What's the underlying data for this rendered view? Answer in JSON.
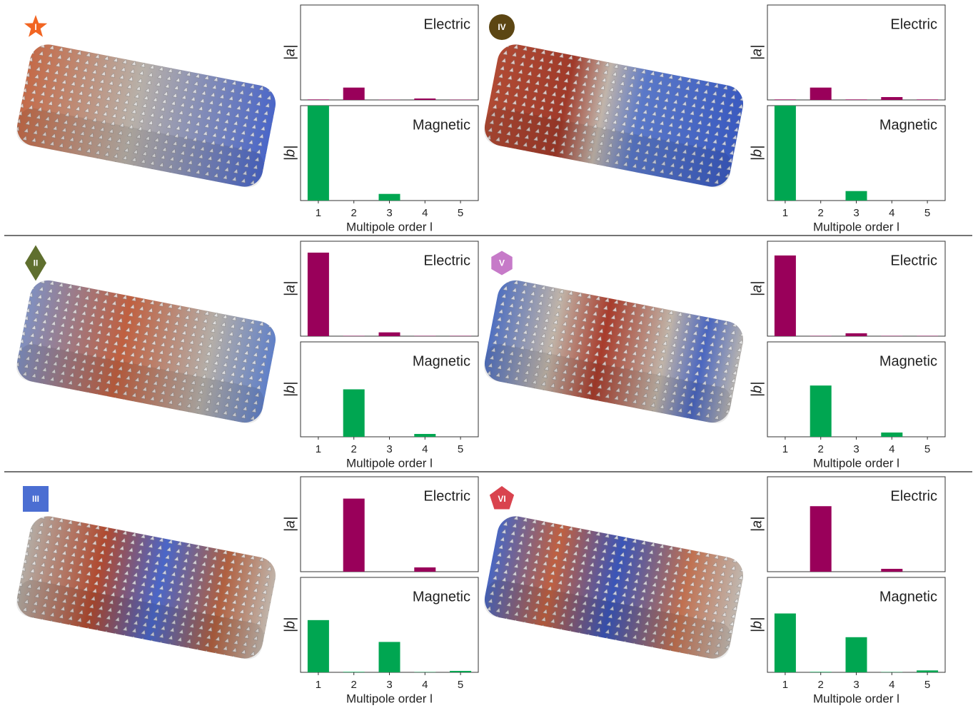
{
  "panels": [
    {
      "label": "I"
    },
    {
      "label": "IV"
    },
    {
      "label": "II"
    },
    {
      "label": "V"
    },
    {
      "label": "III"
    },
    {
      "label": "VI"
    }
  ],
  "chart_data": [
    {
      "type": "bar",
      "title": "Electric",
      "ylabel": "|a|",
      "values": [
        0.005,
        0.13,
        0.003,
        0.015,
        0.003
      ],
      "color": "#99005a",
      "ylim": [
        0,
        1
      ]
    },
    {
      "type": "bar",
      "title": "Magnetic",
      "ylabel": "|b|",
      "categories": [
        1,
        2,
        3,
        4,
        5
      ],
      "xlabel": "Multipole order l",
      "values": [
        1.0,
        0.0,
        0.07,
        0.0,
        0.0
      ],
      "color": "#00a651",
      "ylim": [
        0,
        1
      ]
    },
    {
      "type": "bar",
      "title": "Electric",
      "ylabel": "|a|",
      "values": [
        0.005,
        0.13,
        0.005,
        0.03,
        0.005
      ],
      "color": "#99005a",
      "ylim": [
        0,
        1
      ]
    },
    {
      "type": "bar",
      "title": "Magnetic",
      "ylabel": "|b|",
      "categories": [
        1,
        2,
        3,
        4,
        5
      ],
      "xlabel": "Multipole order l",
      "values": [
        1.0,
        0.0,
        0.1,
        0.0,
        0.0
      ],
      "color": "#00a651",
      "ylim": [
        0,
        1
      ]
    },
    {
      "type": "bar",
      "title": "Electric",
      "ylabel": "|a|",
      "values": [
        0.88,
        0.003,
        0.04,
        0.003,
        0.003
      ],
      "color": "#99005a",
      "ylim": [
        0,
        1
      ]
    },
    {
      "type": "bar",
      "title": "Magnetic",
      "ylabel": "|b|",
      "categories": [
        1,
        2,
        3,
        4,
        5
      ],
      "xlabel": "Multipole order l",
      "values": [
        0.0,
        0.5,
        0.0,
        0.03,
        0.0
      ],
      "color": "#00a651",
      "ylim": [
        0,
        1
      ]
    },
    {
      "type": "bar",
      "title": "Electric",
      "ylabel": "|a|",
      "values": [
        0.85,
        0.003,
        0.03,
        0.003,
        0.003
      ],
      "color": "#99005a",
      "ylim": [
        0,
        1
      ]
    },
    {
      "type": "bar",
      "title": "Magnetic",
      "ylabel": "|b|",
      "categories": [
        1,
        2,
        3,
        4,
        5
      ],
      "xlabel": "Multipole order l",
      "values": [
        0.0,
        0.54,
        0.0,
        0.045,
        0.0
      ],
      "color": "#00a651",
      "ylim": [
        0,
        1
      ]
    },
    {
      "type": "bar",
      "title": "Electric",
      "ylabel": "|a|",
      "values": [
        0.0,
        0.77,
        0.0,
        0.045,
        0.0
      ],
      "color": "#99005a",
      "ylim": [
        0,
        1
      ]
    },
    {
      "type": "bar",
      "title": "Magnetic",
      "ylabel": "|b|",
      "categories": [
        1,
        2,
        3,
        4,
        5
      ],
      "xlabel": "Multipole order l",
      "values": [
        0.55,
        0.005,
        0.32,
        0.003,
        0.015
      ],
      "color": "#00a651",
      "ylim": [
        0,
        1
      ]
    },
    {
      "type": "bar",
      "title": "Electric",
      "ylabel": "|a|",
      "values": [
        0.0,
        0.69,
        0.0,
        0.03,
        0.0
      ],
      "color": "#99005a",
      "ylim": [
        0,
        1
      ]
    },
    {
      "type": "bar",
      "title": "Magnetic",
      "ylabel": "|b|",
      "categories": [
        1,
        2,
        3,
        4,
        5
      ],
      "xlabel": "Multipole order l",
      "values": [
        0.62,
        0.005,
        0.37,
        0.003,
        0.02
      ],
      "color": "#00a651",
      "ylim": [
        0,
        1
      ]
    }
  ]
}
